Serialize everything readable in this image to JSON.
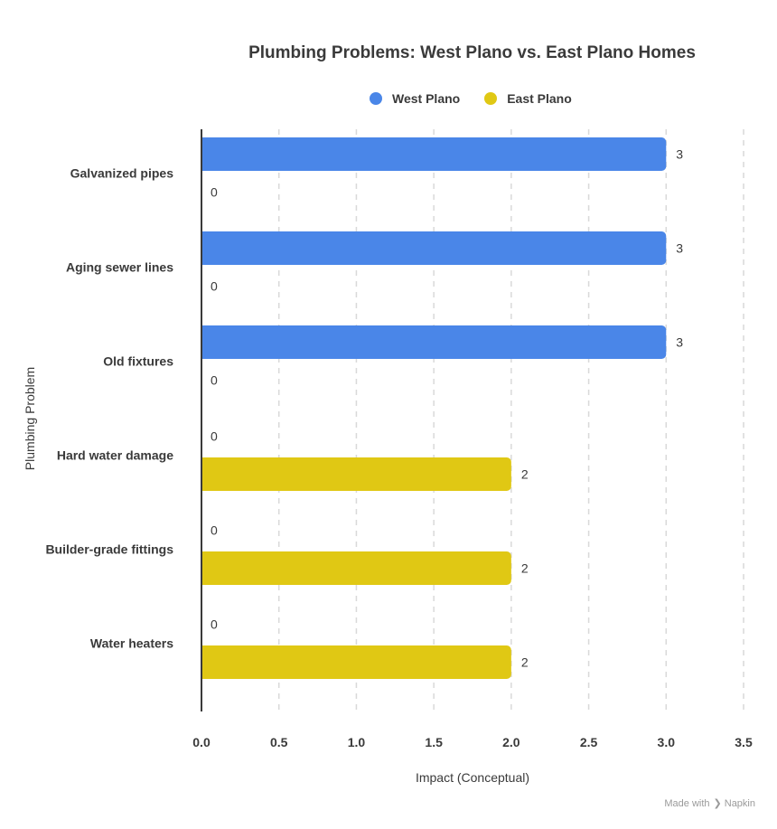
{
  "chart_data": {
    "type": "bar",
    "orientation": "horizontal",
    "title": "Plumbing Problems: West Plano vs. East Plano Homes",
    "xlabel": "Impact (Conceptual)",
    "ylabel": "Plumbing Problem",
    "categories": [
      "Galvanized pipes",
      "Aging sewer lines",
      "Old fixtures",
      "Hard water damage",
      "Builder-grade fittings",
      "Water heaters"
    ],
    "series": [
      {
        "name": "West Plano",
        "color": "#4a86e8",
        "values": [
          3,
          3,
          3,
          0,
          0,
          0
        ]
      },
      {
        "name": "East Plano",
        "color": "#e0c814",
        "values": [
          0,
          0,
          0,
          2,
          2,
          2
        ]
      }
    ],
    "xlim": [
      0,
      3.5
    ],
    "xticks": [
      "0.0",
      "0.5",
      "1.0",
      "1.5",
      "2.0",
      "2.5",
      "3.0",
      "3.5"
    ],
    "grid": true,
    "legend_position": "top"
  },
  "footer": {
    "made_with": "Made with",
    "brand": "Napkin"
  }
}
